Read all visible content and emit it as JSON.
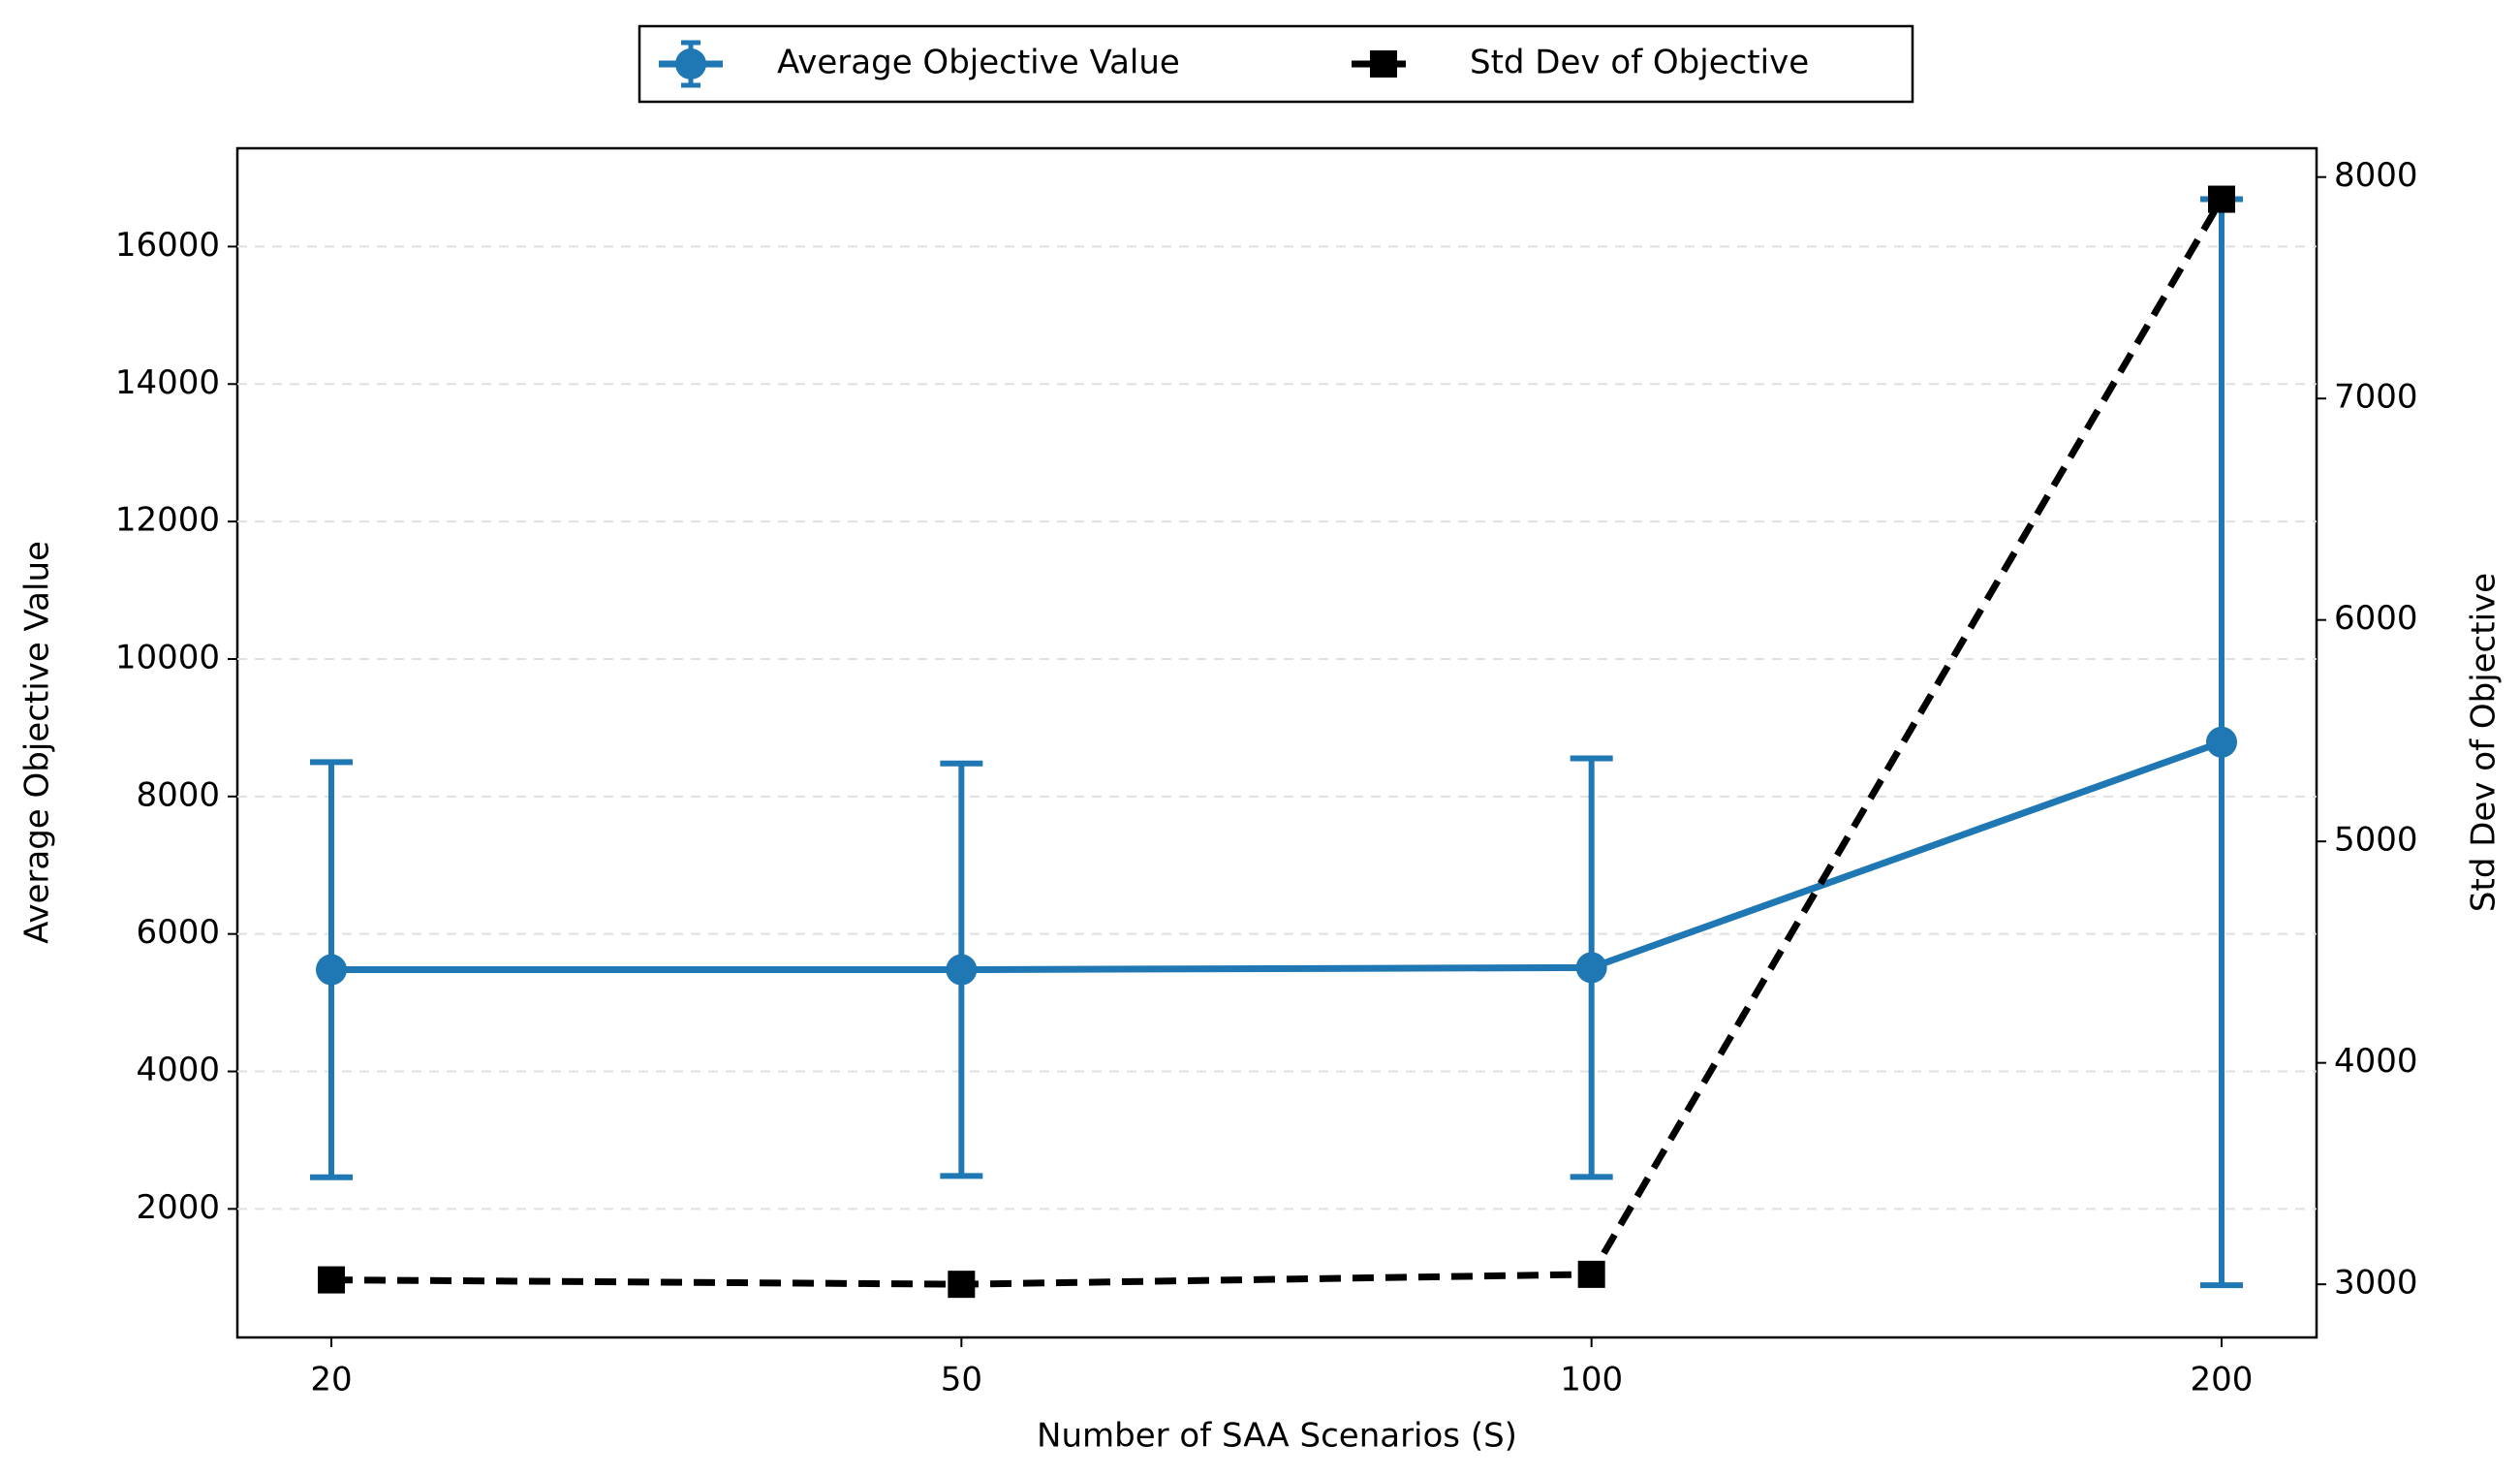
{
  "chart_data": {
    "type": "line",
    "x_label": "Number of SAA Scenarios (S)",
    "y_label": "Average Objective Value",
    "y2_label": "Std Dev of Objective",
    "categories": [
      "20",
      "50",
      "100",
      "200"
    ],
    "series": [
      {
        "name": "Average Objective Value",
        "color": "#1f77b4",
        "values": [
          5480,
          5480,
          5510,
          8790
        ],
        "errors": [
          3020,
          3000,
          3045,
          7900
        ]
      },
      {
        "name": "Std Dev of Objective",
        "color": "#000000",
        "axis": "y2",
        "dashed": true,
        "values": [
          3020,
          3000,
          3045,
          7900
        ]
      }
    ],
    "ylim": [
      130,
      17430
    ],
    "yticks": [
      2000,
      4000,
      6000,
      8000,
      10000,
      12000,
      14000,
      16000
    ],
    "y2lim": [
      2760,
      8130
    ],
    "y2ticks": [
      3000,
      4000,
      5000,
      6000,
      7000,
      8000
    ],
    "grid": true,
    "legend": "upper center"
  }
}
